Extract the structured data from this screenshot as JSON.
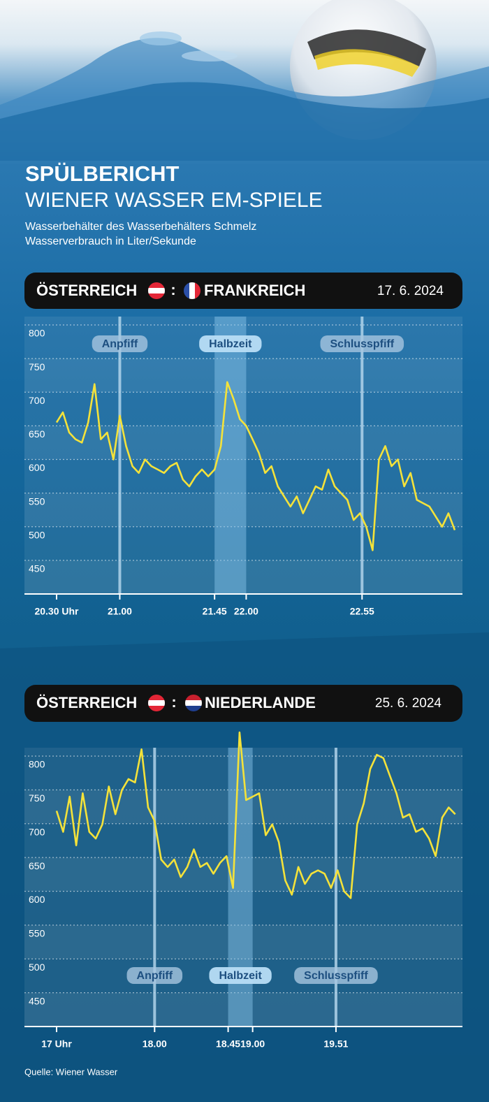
{
  "header": {
    "title": "SPÜLBERICHT",
    "subtitle": "WIENER WASSER EM-SPIELE",
    "description": [
      "Wasserbehälter des Wasserbehälters Schmelz",
      "Wasserverbrauch in Liter/Sekunde"
    ]
  },
  "chart_data": [
    {
      "type": "line",
      "team1": "ÖSTERREICH",
      "separator": ":",
      "team2": "FRANKREICH",
      "date": "17. 6. 2024",
      "color": "#f4e23a",
      "annotation_position": "top",
      "x": [
        "20:30",
        "20:33",
        "20:36",
        "20:39",
        "20:42",
        "20:45",
        "20:48",
        "20:51",
        "20:54",
        "20:57",
        "21:00",
        "21:03",
        "21:06",
        "21:09",
        "21:12",
        "21:15",
        "21:18",
        "21:21",
        "21:24",
        "21:27",
        "21:30",
        "21:33",
        "21:36",
        "21:39",
        "21:42",
        "21:45",
        "21:48",
        "21:51",
        "21:54",
        "21:57",
        "22:00",
        "22:03",
        "22:06",
        "22:09",
        "22:12",
        "22:15",
        "22:18",
        "22:21",
        "22:24",
        "22:27",
        "22:30",
        "22:33",
        "22:36",
        "22:39",
        "22:42",
        "22:45",
        "22:48",
        "22:51",
        "22:54",
        "22:57",
        "23:00",
        "23:03",
        "23:06",
        "23:09",
        "23:12",
        "23:15",
        "23:18",
        "23:21",
        "23:24",
        "23:27",
        "23:30",
        "23:33",
        "23:36",
        "23:39"
      ],
      "values": [
        655,
        670,
        640,
        630,
        625,
        655,
        712,
        630,
        640,
        600,
        665,
        620,
        590,
        580,
        600,
        590,
        585,
        580,
        590,
        595,
        570,
        560,
        575,
        585,
        575,
        585,
        620,
        715,
        690,
        660,
        650,
        630,
        610,
        580,
        590,
        560,
        545,
        530,
        545,
        520,
        540,
        560,
        555,
        585,
        560,
        550,
        540,
        510,
        520,
        500,
        465,
        600,
        620,
        590,
        600,
        560,
        580,
        540,
        535,
        530,
        515,
        500,
        520,
        495
      ],
      "xlim": [
        "20:30",
        "23:40"
      ],
      "xticks": [
        {
          "value": "20:30",
          "label": "20.30 Uhr"
        },
        {
          "value": "21:00",
          "label": "21.00"
        },
        {
          "value": "21:45",
          "label": "21.45"
        },
        {
          "value": "22:00",
          "label": "22.00"
        },
        {
          "value": "22:55",
          "label": "22.55"
        }
      ],
      "ylim": [
        400,
        800
      ],
      "yticks": [
        450,
        500,
        550,
        600,
        650,
        700,
        750,
        800
      ],
      "grid": true,
      "events": [
        {
          "label": "Anpfiff",
          "x": "21:00"
        },
        {
          "label": "Halbzeit",
          "x": "21:45",
          "x2": "22:00"
        },
        {
          "label": "Schlusspfiff",
          "x": "22:55"
        }
      ]
    },
    {
      "type": "line",
      "team1": "ÖSTERREICH",
      "separator": ":",
      "team2": "NIEDERLANDE",
      "date": "25. 6. 2024",
      "color": "#f4e23a",
      "annotation_position": "bottom",
      "x": [
        "17:00",
        "17:04",
        "17:08",
        "17:12",
        "17:16",
        "17:20",
        "17:24",
        "17:28",
        "17:32",
        "17:36",
        "17:40",
        "17:44",
        "17:48",
        "17:52",
        "17:56",
        "18:00",
        "18:04",
        "18:08",
        "18:12",
        "18:16",
        "18:20",
        "18:24",
        "18:28",
        "18:32",
        "18:36",
        "18:40",
        "18:44",
        "18:48",
        "18:52",
        "18:56",
        "19:00",
        "19:04",
        "19:08",
        "19:12",
        "19:16",
        "19:20",
        "19:24",
        "19:28",
        "19:32",
        "19:36",
        "19:40",
        "19:44",
        "19:48",
        "19:52",
        "19:56",
        "20:00",
        "20:04",
        "20:08",
        "20:12",
        "20:16",
        "20:20",
        "20:24",
        "20:28",
        "20:32",
        "20:36",
        "20:40",
        "20:44",
        "20:48",
        "20:52",
        "20:56",
        "21:00",
        "21:04"
      ],
      "values": [
        719,
        688,
        740,
        668,
        745,
        688,
        678,
        699,
        755,
        714,
        750,
        766,
        761,
        810,
        724,
        704,
        647,
        636,
        647,
        621,
        636,
        662,
        636,
        642,
        626,
        642,
        652,
        605,
        835,
        735,
        740,
        745,
        683,
        699,
        673,
        616,
        595,
        636,
        611,
        626,
        631,
        626,
        605,
        631,
        600,
        590,
        699,
        730,
        781,
        802,
        797,
        771,
        745,
        709,
        714,
        688,
        693,
        678,
        652,
        709,
        724,
        714
      ],
      "xlim": [
        "17:00",
        "21:05"
      ],
      "xticks": [
        {
          "value": "17:00",
          "label": "17 Uhr"
        },
        {
          "value": "18:00",
          "label": "18.00"
        },
        {
          "value": "18:45",
          "label": "18.45"
        },
        {
          "value": "19:00",
          "label": "19.00"
        },
        {
          "value": "19:51",
          "label": "19.51"
        }
      ],
      "ylim": [
        400,
        800
      ],
      "yticks": [
        450,
        500,
        550,
        600,
        650,
        700,
        750,
        800
      ],
      "grid": true,
      "events": [
        {
          "label": "Anpfiff",
          "x": "18:00"
        },
        {
          "label": "Halbzeit",
          "x": "18:45",
          "x2": "19:00"
        },
        {
          "label": "Schlusspfiff",
          "x": "19:51"
        }
      ]
    }
  ],
  "source": "Quelle: Wiener Wasser"
}
